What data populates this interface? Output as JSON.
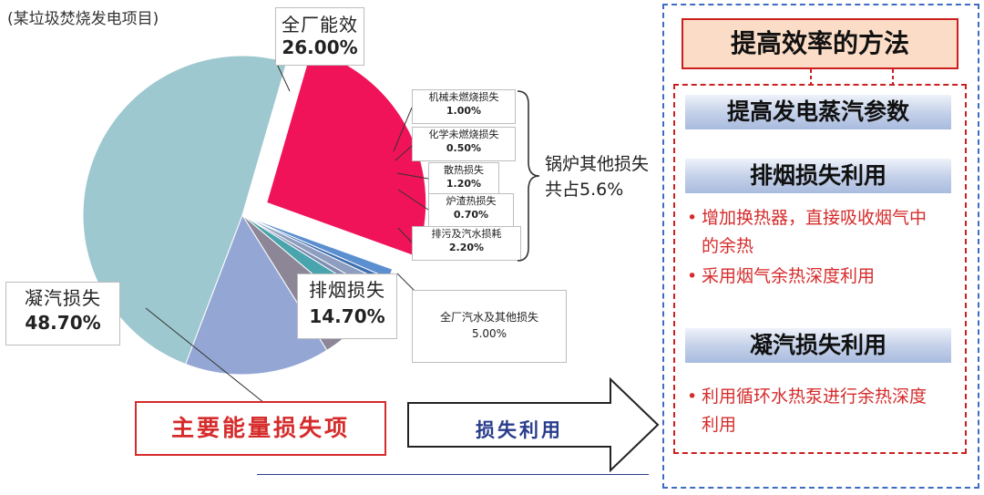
{
  "subtitle": "(某垃圾焚烧发电项目)",
  "chart_data": {
    "type": "pie",
    "slices": [
      {
        "name": "全厂能效",
        "value": 26.0,
        "color": "#f0135a",
        "exploded": true
      },
      {
        "name": "机械未燃烧损失",
        "value": 1.0,
        "color": "#5b8fd0"
      },
      {
        "name": "化学未燃烧损失",
        "value": 0.5,
        "color": "#3e6fb0"
      },
      {
        "name": "散热损失",
        "value": 1.2,
        "color": "#8d9ec0"
      },
      {
        "name": "炉渣热损失",
        "value": 0.7,
        "color": "#7f8fb3"
      },
      {
        "name": "排污及汽水损耗",
        "value": 2.2,
        "color": "#4aa4ad"
      },
      {
        "name": "全厂汽水及其他损失",
        "value": 5.0,
        "color": "#8c8697"
      },
      {
        "name": "排烟损失",
        "value": 14.7,
        "color": "#94a7d4"
      },
      {
        "name": "凝汽损失",
        "value": 48.7,
        "color": "#9ec8cf"
      }
    ],
    "labels": {
      "efficiency": {
        "name": "全厂能效",
        "value": "26.00%"
      },
      "condensing": {
        "name": "凝汽损失",
        "value": "48.70%"
      },
      "flue": {
        "name": "排烟损失",
        "value": "14.70%"
      },
      "other_total": {
        "name": "全厂汽水及其他损失",
        "value": "5.00%"
      },
      "small": [
        {
          "name": "机械未燃烧损失",
          "value": "1.00%"
        },
        {
          "name": "化学未燃烧损失",
          "value": "0.50%"
        },
        {
          "name": "散热损失",
          "value": "1.20%"
        },
        {
          "name": "炉渣热损失",
          "value": "0.70%"
        },
        {
          "name": "排污及汽水损耗",
          "value": "2.20%"
        }
      ]
    },
    "group_label_text": "锅炉其他损失共占",
    "group_label_pct": "5.6%"
  },
  "main_loss_label": "主要能量损失项",
  "arrow_label": "损失利用",
  "methods": {
    "title": "提高效率的方法",
    "header1": "提高发电蒸汽参数",
    "header2": "排烟损失利用",
    "bullets2": [
      "增加换热器，直接吸收烟气中的余热",
      "采用烟气余热深度利用"
    ],
    "header3": "凝汽损失利用",
    "bullets3": [
      "利用循环水热泵进行余热深度利用"
    ],
    "bullet_symbol": "•"
  }
}
